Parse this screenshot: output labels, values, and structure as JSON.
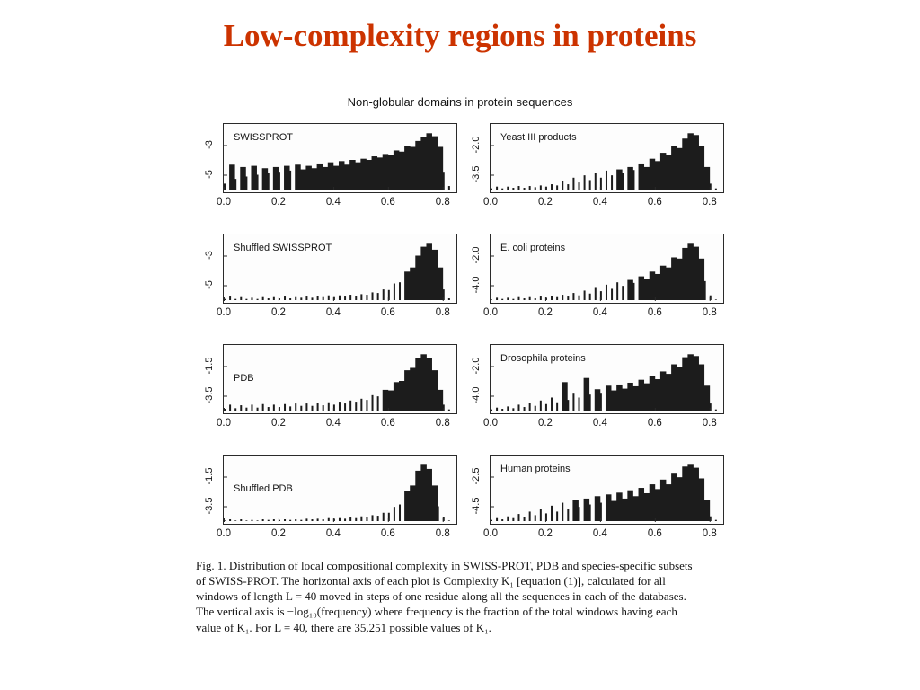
{
  "slide": {
    "title": "Low-complexity regions in proteins",
    "title_color": "#cc3300"
  },
  "figure": {
    "title": "Non-globular domains in protein sequences",
    "bar_color": "#1c1c1c",
    "x_max": 0.85,
    "xtick_values": [
      0,
      0.2,
      0.4,
      0.6,
      0.8
    ],
    "xtick_labels": [
      "0.0",
      "0.2",
      "0.4",
      "0.6",
      "0.8"
    ],
    "caption_lines": [
      "Fig. 1. Distribution of local compositional complexity in SWISS-PROT, PDB and species-specific subsets",
      "of SWISS-PROT. The horizontal axis of each plot is Complexity K₁ [equation (1)], calculated for all",
      "windows of length L = 40 moved in steps of one residue along all the sequences in each of the databases.",
      "The vertical axis is −log₁₀(frequency) where frequency is the fraction of the total windows having each",
      "value of K₁. For L = 40, there are 35,251 possible values of K₁."
    ]
  },
  "chart_data": [
    {
      "type": "area",
      "label": "SWISSPROT",
      "label_pos": "top",
      "yticks": [
        "-3",
        "-5"
      ],
      "x_start": 0,
      "x_step": 0.02,
      "xlabel": "Complexity K1",
      "ylabel": "-log10(frequency)",
      "values": [
        0.1,
        0.42,
        0.18,
        0.38,
        0.22,
        0.4,
        0.25,
        0.36,
        0.28,
        0.38,
        0.3,
        0.4,
        0.32,
        0.42,
        0.34,
        0.4,
        0.36,
        0.44,
        0.38,
        0.46,
        0.4,
        0.48,
        0.42,
        0.5,
        0.46,
        0.52,
        0.5,
        0.56,
        0.54,
        0.6,
        0.58,
        0.66,
        0.64,
        0.74,
        0.72,
        0.82,
        0.88,
        0.95,
        0.9,
        0.72,
        0.3,
        0.06
      ]
    },
    {
      "type": "area",
      "label": "Yeast III products",
      "label_pos": "top",
      "yticks": [
        "-2.0",
        "-3.5"
      ],
      "x_start": 0,
      "x_step": 0.02,
      "xlabel": "Complexity K1",
      "ylabel": "-log10(frequency)",
      "values": [
        0.02,
        0.05,
        0.02,
        0.05,
        0.03,
        0.06,
        0.03,
        0.06,
        0.04,
        0.07,
        0.05,
        0.09,
        0.07,
        0.14,
        0.09,
        0.2,
        0.12,
        0.24,
        0.16,
        0.28,
        0.2,
        0.32,
        0.24,
        0.34,
        0.28,
        0.38,
        0.33,
        0.44,
        0.38,
        0.52,
        0.48,
        0.62,
        0.58,
        0.74,
        0.7,
        0.86,
        0.95,
        0.92,
        0.74,
        0.38,
        0.1,
        0.02
      ]
    },
    {
      "type": "area",
      "label": "Shuffled SWISSPROT",
      "label_pos": "top",
      "yticks": [
        "-3",
        "-5"
      ],
      "x_start": 0,
      "x_step": 0.02,
      "xlabel": "Complexity K1",
      "ylabel": "-log10(frequency)",
      "values": [
        0.02,
        0.06,
        0.02,
        0.05,
        0.02,
        0.04,
        0.02,
        0.05,
        0.03,
        0.05,
        0.03,
        0.06,
        0.03,
        0.05,
        0.04,
        0.06,
        0.04,
        0.07,
        0.05,
        0.08,
        0.05,
        0.08,
        0.06,
        0.09,
        0.07,
        0.1,
        0.09,
        0.13,
        0.12,
        0.18,
        0.17,
        0.28,
        0.3,
        0.48,
        0.55,
        0.75,
        0.9,
        0.95,
        0.85,
        0.55,
        0.18,
        0.03
      ]
    },
    {
      "type": "area",
      "label": "E. coli proteins",
      "label_pos": "top",
      "yticks": [
        "-2.0",
        "-4.0"
      ],
      "x_start": 0,
      "x_step": 0.02,
      "xlabel": "Complexity K1",
      "ylabel": "-log10(frequency)",
      "values": [
        0.01,
        0.04,
        0.02,
        0.04,
        0.02,
        0.05,
        0.03,
        0.05,
        0.03,
        0.06,
        0.04,
        0.07,
        0.05,
        0.09,
        0.06,
        0.12,
        0.08,
        0.16,
        0.11,
        0.22,
        0.15,
        0.26,
        0.19,
        0.3,
        0.24,
        0.34,
        0.29,
        0.4,
        0.35,
        0.48,
        0.44,
        0.58,
        0.55,
        0.72,
        0.7,
        0.88,
        0.95,
        0.9,
        0.7,
        0.32,
        0.08,
        0.01
      ]
    },
    {
      "type": "area",
      "label": "PDB",
      "label_pos": "middle",
      "yticks": [
        "-1.5",
        "-3.5"
      ],
      "x_start": 0,
      "x_step": 0.02,
      "xlabel": "Complexity K1",
      "ylabel": "-log10(frequency)",
      "values": [
        0.03,
        0.1,
        0.04,
        0.09,
        0.05,
        0.1,
        0.05,
        0.11,
        0.06,
        0.1,
        0.06,
        0.11,
        0.07,
        0.12,
        0.08,
        0.12,
        0.08,
        0.13,
        0.09,
        0.14,
        0.1,
        0.15,
        0.12,
        0.17,
        0.15,
        0.2,
        0.18,
        0.26,
        0.24,
        0.35,
        0.34,
        0.48,
        0.5,
        0.68,
        0.72,
        0.88,
        0.95,
        0.88,
        0.68,
        0.35,
        0.1,
        0.02
      ]
    },
    {
      "type": "area",
      "label": "Drosophila proteins",
      "label_pos": "top",
      "yticks": [
        "-2.0",
        "-4.0"
      ],
      "x_start": 0,
      "x_step": 0.02,
      "xlabel": "Complexity K1",
      "ylabel": "-log10(frequency)",
      "values": [
        0.02,
        0.05,
        0.03,
        0.07,
        0.04,
        0.1,
        0.06,
        0.13,
        0.08,
        0.17,
        0.11,
        0.22,
        0.14,
        0.48,
        0.18,
        0.3,
        0.22,
        0.55,
        0.27,
        0.36,
        0.3,
        0.42,
        0.34,
        0.44,
        0.37,
        0.47,
        0.41,
        0.52,
        0.46,
        0.58,
        0.53,
        0.66,
        0.62,
        0.78,
        0.74,
        0.9,
        0.95,
        0.92,
        0.78,
        0.42,
        0.12,
        0.02
      ]
    },
    {
      "type": "area",
      "label": "Shuffled PDB",
      "label_pos": "middle",
      "yticks": [
        "-1.5",
        "-3.5"
      ],
      "x_start": 0,
      "x_step": 0.02,
      "xlabel": "Complexity K1",
      "ylabel": "-log10(frequency)",
      "values": [
        0.01,
        0.03,
        0.01,
        0.03,
        0.01,
        0.02,
        0.01,
        0.03,
        0.02,
        0.03,
        0.02,
        0.03,
        0.02,
        0.03,
        0.02,
        0.04,
        0.03,
        0.04,
        0.03,
        0.05,
        0.04,
        0.05,
        0.04,
        0.06,
        0.05,
        0.08,
        0.07,
        0.1,
        0.09,
        0.14,
        0.14,
        0.24,
        0.28,
        0.5,
        0.6,
        0.85,
        0.95,
        0.88,
        0.6,
        0.25,
        0.06,
        0.01
      ]
    },
    {
      "type": "area",
      "label": "Human proteins",
      "label_pos": "top",
      "yticks": [
        "-2.5",
        "-4.5"
      ],
      "x_start": 0,
      "x_step": 0.02,
      "xlabel": "Complexity K1",
      "ylabel": "-log10(frequency)",
      "values": [
        0.02,
        0.05,
        0.03,
        0.08,
        0.05,
        0.12,
        0.07,
        0.16,
        0.1,
        0.21,
        0.13,
        0.26,
        0.16,
        0.31,
        0.2,
        0.35,
        0.24,
        0.38,
        0.28,
        0.42,
        0.31,
        0.45,
        0.34,
        0.48,
        0.38,
        0.52,
        0.42,
        0.56,
        0.47,
        0.62,
        0.54,
        0.7,
        0.62,
        0.8,
        0.74,
        0.92,
        0.95,
        0.9,
        0.72,
        0.35,
        0.08,
        0.02
      ]
    }
  ]
}
